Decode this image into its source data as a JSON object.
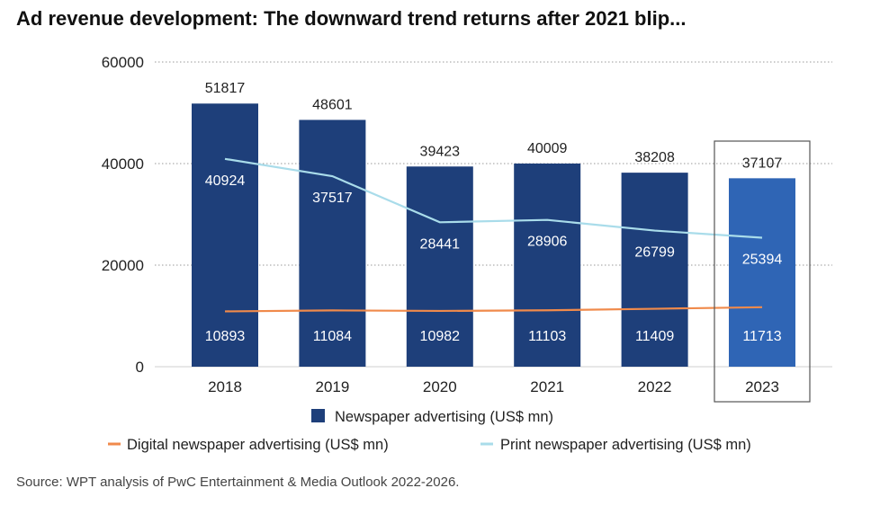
{
  "title": "Ad revenue development: The downward trend returns after 2021 blip...",
  "source": "Source: WPT analysis of PwC Entertainment & Media Outlook 2022-2026.",
  "colors": {
    "bar": "#1e3f7a",
    "bar_highlight": "#2f65b5",
    "digital_line": "#f08a4b",
    "print_line": "#a9dcea",
    "grid": "#9a9a9a"
  },
  "chart_data": {
    "type": "bar",
    "categories": [
      "2018",
      "2019",
      "2020",
      "2021",
      "2022",
      "2023"
    ],
    "ylim": [
      0,
      60000
    ],
    "yticks": [
      "0",
      "20000",
      "40000",
      "60000"
    ],
    "grid": true,
    "legend_position": "bottom",
    "highlight_category": "2023",
    "series": [
      {
        "name": "Newspaper advertising (US$ mn)",
        "kind": "bar",
        "values": [
          51817,
          48601,
          39423,
          40009,
          38208,
          37107
        ],
        "labels": [
          "51817",
          "48601",
          "39423",
          "40009",
          "38208",
          "37107"
        ]
      },
      {
        "name": "Digital newspaper advertising (US$ mn)",
        "kind": "line",
        "values": [
          10893,
          11084,
          10982,
          11103,
          11409,
          11713
        ],
        "labels": [
          "10893",
          "11084",
          "10982",
          "11103",
          "11409",
          "11713"
        ]
      },
      {
        "name": "Print newspaper advertising (US$ mn)",
        "kind": "line",
        "values": [
          40924,
          37517,
          28441,
          28906,
          26799,
          25394
        ],
        "labels": [
          "40924",
          "37517",
          "28441",
          "28906",
          "26799",
          "25394"
        ]
      }
    ]
  }
}
